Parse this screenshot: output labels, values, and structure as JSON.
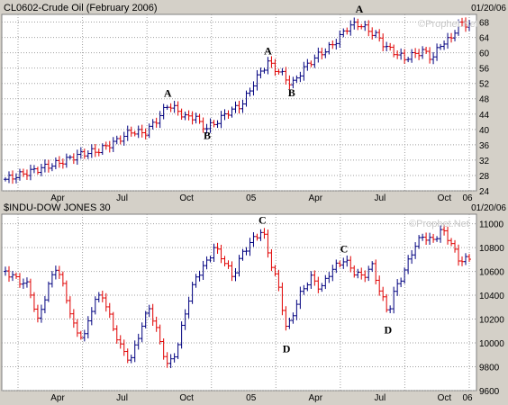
{
  "colors": {
    "up": "#00007f",
    "down": "#e00000",
    "background": "#ffffff",
    "grid": "#a0a0a0",
    "frame": "#d4d0c8"
  },
  "chart_data": [
    {
      "type": "ohlc",
      "title": "CL0602-Crude Oil (February 2006)",
      "date": "01/20/06",
      "watermark": "©Prophet.Net",
      "x_labels": [
        "Apr",
        "Jul",
        "Oct",
        "05",
        "Apr",
        "Jul",
        "Oct",
        "06"
      ],
      "y_ticks": [
        24,
        28,
        32,
        36,
        40,
        44,
        48,
        52,
        56,
        60,
        64,
        68
      ],
      "ylim": [
        24,
        70
      ],
      "grid": true,
      "annotations": [
        {
          "label": "A",
          "x": 0.35,
          "y": 48.5
        },
        {
          "label": "B",
          "x": 0.435,
          "y": 37.5
        },
        {
          "label": "A",
          "x": 0.566,
          "y": 59.5
        },
        {
          "label": "B",
          "x": 0.617,
          "y": 48.6
        },
        {
          "label": "A",
          "x": 0.763,
          "y": 70.5
        }
      ],
      "series": [
        {
          "values": [
            [
              0.0,
              27.0
            ],
            [
              0.04,
              28.5
            ],
            [
              0.08,
              30.0
            ],
            [
              0.12,
              31.5
            ],
            [
              0.16,
              33.5
            ],
            [
              0.2,
              34.5
            ],
            [
              0.24,
              37.0
            ],
            [
              0.27,
              39.5
            ],
            [
              0.3,
              39.0
            ],
            [
              0.33,
              43.0
            ],
            [
              0.35,
              46.5
            ],
            [
              0.37,
              45.0
            ],
            [
              0.39,
              43.0
            ],
            [
              0.41,
              43.5
            ],
            [
              0.42,
              41.0
            ],
            [
              0.435,
              40.5
            ],
            [
              0.45,
              41.5
            ],
            [
              0.48,
              44.5
            ],
            [
              0.51,
              46.5
            ],
            [
              0.53,
              51.0
            ],
            [
              0.55,
              55.0
            ],
            [
              0.566,
              57.5
            ],
            [
              0.58,
              56.0
            ],
            [
              0.6,
              54.0
            ],
            [
              0.617,
              51.5
            ],
            [
              0.64,
              55.5
            ],
            [
              0.67,
              59.0
            ],
            [
              0.7,
              61.5
            ],
            [
              0.72,
              64.0
            ],
            [
              0.74,
              67.0
            ],
            [
              0.763,
              67.5
            ],
            [
              0.78,
              66.0
            ],
            [
              0.8,
              64.5
            ],
            [
              0.82,
              61.5
            ],
            [
              0.84,
              60.0
            ],
            [
              0.86,
              58.5
            ],
            [
              0.88,
              59.5
            ],
            [
              0.9,
              60.5
            ],
            [
              0.92,
              58.5
            ],
            [
              0.94,
              62.5
            ],
            [
              0.96,
              63.5
            ],
            [
              0.975,
              67.5
            ]
          ]
        }
      ]
    },
    {
      "type": "ohlc",
      "title": "$INDU-DOW JONES 30",
      "date": "01/20/06",
      "watermark": "©Prophet.Net",
      "x_labels": [
        "Apr",
        "Jul",
        "Oct",
        "05",
        "Apr",
        "Jul",
        "Oct",
        "06"
      ],
      "y_ticks": [
        9600,
        9800,
        10000,
        10200,
        10400,
        10600,
        10800,
        11000
      ],
      "ylim": [
        9600,
        11080
      ],
      "grid": true,
      "annotations": [
        {
          "label": "C",
          "x": 0.554,
          "y": 11000
        },
        {
          "label": "D",
          "x": 0.606,
          "y": 9920
        },
        {
          "label": "C",
          "x": 0.73,
          "y": 10760
        },
        {
          "label": "D",
          "x": 0.825,
          "y": 10080
        }
      ],
      "series": [
        {
          "values": [
            [
              0.0,
              10600
            ],
            [
              0.03,
              10520
            ],
            [
              0.05,
              10480
            ],
            [
              0.07,
              10180
            ],
            [
              0.09,
              10450
            ],
            [
              0.11,
              10650
            ],
            [
              0.13,
              10400
            ],
            [
              0.15,
              10100
            ],
            [
              0.17,
              10050
            ],
            [
              0.19,
              10350
            ],
            [
              0.21,
              10400
            ],
            [
              0.23,
              10150
            ],
            [
              0.25,
              9950
            ],
            [
              0.27,
              9850
            ],
            [
              0.29,
              10100
            ],
            [
              0.31,
              10300
            ],
            [
              0.33,
              10050
            ],
            [
              0.35,
              9800
            ],
            [
              0.37,
              9950
            ],
            [
              0.39,
              10300
            ],
            [
              0.41,
              10550
            ],
            [
              0.43,
              10650
            ],
            [
              0.45,
              10800
            ],
            [
              0.47,
              10700
            ],
            [
              0.49,
              10550
            ],
            [
              0.51,
              10750
            ],
            [
              0.53,
              10850
            ],
            [
              0.554,
              10950
            ],
            [
              0.57,
              10700
            ],
            [
              0.59,
              10450
            ],
            [
              0.606,
              10100
            ],
            [
              0.62,
              10250
            ],
            [
              0.64,
              10450
            ],
            [
              0.66,
              10550
            ],
            [
              0.68,
              10450
            ],
            [
              0.7,
              10600
            ],
            [
              0.73,
              10700
            ],
            [
              0.75,
              10600
            ],
            [
              0.77,
              10550
            ],
            [
              0.79,
              10650
            ],
            [
              0.81,
              10400
            ],
            [
              0.825,
              10250
            ],
            [
              0.84,
              10450
            ],
            [
              0.86,
              10600
            ],
            [
              0.88,
              10800
            ],
            [
              0.9,
              10900
            ],
            [
              0.92,
              10850
            ],
            [
              0.94,
              10950
            ],
            [
              0.96,
              10850
            ],
            [
              0.975,
              10700
            ]
          ]
        }
      ]
    }
  ]
}
